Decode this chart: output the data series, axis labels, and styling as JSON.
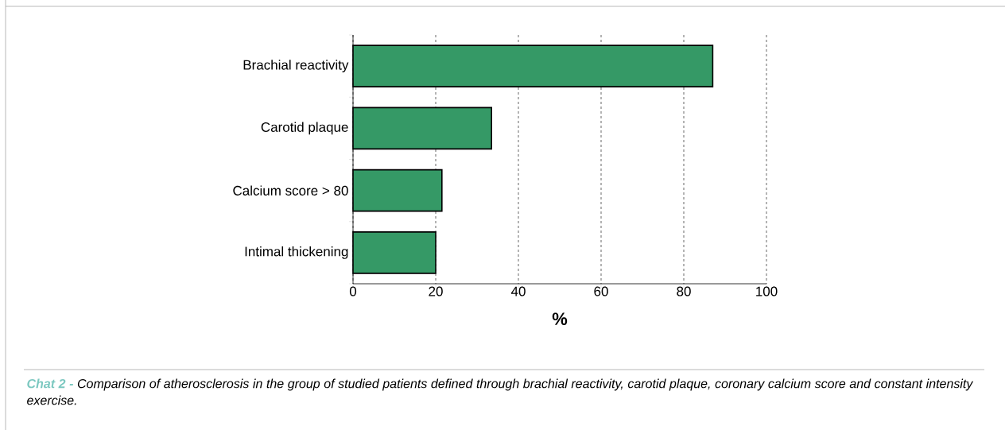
{
  "chart_data": {
    "type": "bar",
    "orientation": "horizontal",
    "categories": [
      "Brachial reactivity",
      "Carotid plaque",
      "Calcium score > 80",
      "Intimal thickening"
    ],
    "values": [
      87,
      33.5,
      21.5,
      20
    ],
    "color": "#359966",
    "xlim": [
      0,
      100
    ],
    "xticks": [
      0,
      20,
      40,
      60,
      80,
      100
    ],
    "xlabel": "%",
    "grid": "x",
    "annotations": [
      "Chat 2 -",
      "Comparison of atherosclerosis in the group of studied patients defined through brachial reactivity, carotid plaque, coronary calcium score and constant intensity exercise."
    ]
  }
}
